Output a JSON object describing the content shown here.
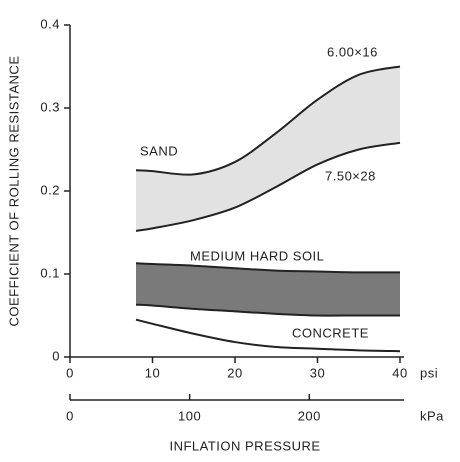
{
  "chart_data": {
    "type": "band",
    "ylabel": "COEFFICIENT OF ROLLING RESISTANCE",
    "xlabel": "INFLATION PRESSURE",
    "x_unit": "psi",
    "x2_unit": "kPa",
    "xlim": [
      0,
      40
    ],
    "xticks": [
      0,
      10,
      20,
      30,
      40
    ],
    "x2lim": [
      0,
      275.8
    ],
    "x2ticks": [
      0,
      100,
      200
    ],
    "ylim": [
      0,
      0.4
    ],
    "yticks": [
      0,
      0.1,
      0.2,
      0.3,
      0.4
    ],
    "x": [
      8,
      10,
      15,
      20,
      25,
      30,
      35,
      40
    ],
    "series": [
      {
        "name": "SAND",
        "color": "#e2e2e2",
        "upper_name": "6.00×16",
        "upper": [
          0.225,
          0.224,
          0.22,
          0.235,
          0.27,
          0.31,
          0.34,
          0.35
        ],
        "lower_name": "7.50×28",
        "lower": [
          0.152,
          0.155,
          0.165,
          0.18,
          0.205,
          0.232,
          0.25,
          0.258
        ]
      },
      {
        "name": "MEDIUM HARD SOIL",
        "color": "#7a7a7a",
        "upper": [
          0.113,
          0.112,
          0.11,
          0.107,
          0.104,
          0.103,
          0.102,
          0.102
        ],
        "lower": [
          0.063,
          0.062,
          0.058,
          0.055,
          0.052,
          0.05,
          0.05,
          0.05
        ]
      },
      {
        "name": "CONCRETE",
        "color": "#222222",
        "values": [
          0.045,
          0.04,
          0.028,
          0.018,
          0.012,
          0.01,
          0.008,
          0.007
        ]
      }
    ]
  }
}
